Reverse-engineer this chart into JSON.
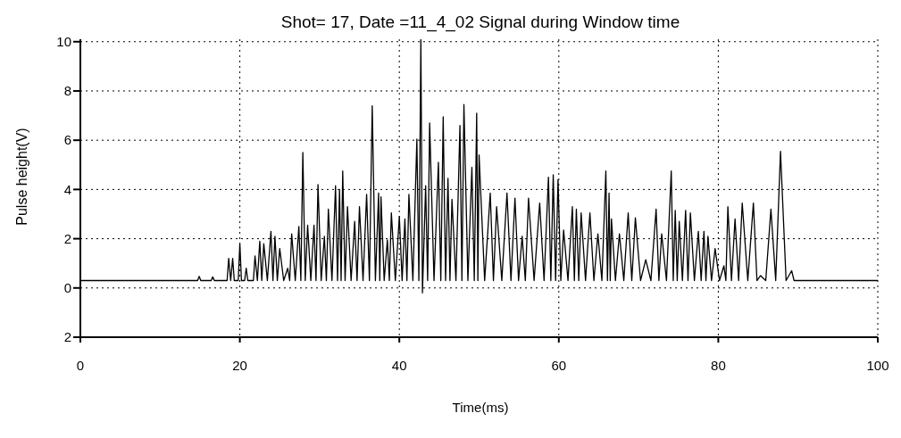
{
  "chart_data": {
    "type": "line",
    "title": "Shot= 17, Date =11_4_02 Signal during Window time",
    "xlabel": "Time(ms)",
    "ylabel": "Pulse height(V)",
    "xlim": [
      0,
      100
    ],
    "xticks": [
      0,
      20,
      40,
      60,
      80,
      100
    ],
    "ylim": [
      -2,
      10.1
    ],
    "yticks": [
      0,
      2,
      4,
      6,
      8,
      10,
      {
        "value": -2,
        "label": "2"
      }
    ],
    "grid": true,
    "legend": false,
    "marker": "none",
    "line_style": "solid",
    "x": [
      0,
      14.7,
      14.9,
      15.1,
      16.4,
      16.6,
      16.8,
      18.4,
      18.6,
      18.85,
      19.1,
      19.3,
      19.8,
      20.0,
      20.2,
      20.6,
      20.8,
      21.0,
      21.7,
      21.9,
      22.2,
      22.5,
      22.75,
      23.0,
      23.45,
      23.9,
      24.15,
      24.4,
      24.7,
      25.0,
      25.5,
      26.0,
      26.25,
      26.5,
      26.95,
      27.4,
      27.65,
      27.9,
      28.2,
      28.5,
      28.9,
      29.3,
      29.55,
      29.8,
      30.2,
      30.6,
      30.85,
      31.1,
      31.55,
      32.0,
      32.25,
      32.5,
      32.7,
      32.9,
      33.2,
      33.5,
      33.95,
      34.4,
      34.7,
      35.0,
      35.45,
      35.9,
      36.25,
      36.6,
      37.0,
      37.4,
      37.55,
      37.7,
      38.1,
      38.5,
      38.75,
      39.0,
      39.5,
      40.0,
      40.35,
      40.7,
      40.95,
      41.2,
      41.7,
      42.2,
      42.45,
      42.7,
      42.9,
      43.3,
      43.55,
      43.8,
      44.35,
      44.9,
      45.2,
      45.5,
      45.8,
      46.1,
      46.35,
      46.6,
      47.1,
      47.6,
      47.85,
      48.1,
      48.6,
      49.1,
      49.4,
      49.7,
      49.85,
      50.0,
      50.7,
      51.4,
      51.8,
      52.2,
      52.85,
      53.5,
      54.0,
      54.5,
      54.95,
      55.4,
      55.8,
      56.2,
      56.9,
      57.6,
      58.15,
      58.7,
      59.0,
      59.3,
      59.6,
      59.9,
      60.25,
      60.6,
      61.15,
      61.7,
      61.95,
      62.2,
      62.5,
      62.8,
      63.35,
      63.9,
      64.4,
      64.9,
      65.4,
      65.9,
      66.1,
      66.3,
      66.45,
      66.6,
      67.1,
      67.6,
      68.15,
      68.7,
      69.15,
      69.6,
      70.25,
      70.9,
      71.55,
      72.2,
      72.55,
      72.9,
      73.5,
      74.1,
      74.35,
      74.6,
      74.85,
      75.1,
      75.5,
      75.9,
      76.2,
      76.5,
      77.0,
      77.5,
      77.85,
      78.2,
      78.45,
      78.7,
      79.15,
      79.6,
      80.15,
      80.7,
      80.95,
      81.2,
      81.65,
      82.1,
      82.55,
      83.0,
      83.7,
      84.4,
      84.85,
      85.3,
      85.95,
      86.6,
      87.2,
      87.8,
      88.5,
      89.2,
      89.5,
      100
    ],
    "series": [
      {
        "color": "#000000",
        "values": [
          0.3,
          0.3,
          0.47,
          0.3,
          0.3,
          0.45,
          0.3,
          0.3,
          1.2,
          0.3,
          1.2,
          0.3,
          0.3,
          1.8,
          0.3,
          0.3,
          0.8,
          0.3,
          0.3,
          1.3,
          0.3,
          1.9,
          0.3,
          1.8,
          0.3,
          2.3,
          0.3,
          2.1,
          0.3,
          1.6,
          0.3,
          0.8,
          0.3,
          2.2,
          0.3,
          2.5,
          0.3,
          5.5,
          0.3,
          2.55,
          0.3,
          2.55,
          0.3,
          4.2,
          0.3,
          2.1,
          0.3,
          3.2,
          0.3,
          4.15,
          0.3,
          4.0,
          0.3,
          4.75,
          0.3,
          3.3,
          0.3,
          2.7,
          0.3,
          3.3,
          0.3,
          3.8,
          0.3,
          7.4,
          0.3,
          3.85,
          0.3,
          3.7,
          0.3,
          1.95,
          0.3,
          3.05,
          0.3,
          2.9,
          0.3,
          2.8,
          0.3,
          3.8,
          0.3,
          6.05,
          0.3,
          10.1,
          -0.2,
          4.15,
          0.3,
          6.7,
          0.3,
          5.1,
          0.3,
          6.95,
          0.3,
          4.45,
          0.3,
          3.6,
          0.3,
          6.6,
          0.3,
          7.45,
          0.3,
          4.9,
          0.3,
          7.1,
          0.3,
          5.4,
          0.3,
          3.85,
          0.3,
          3.3,
          0.3,
          3.85,
          0.3,
          3.65,
          0.3,
          2.1,
          0.3,
          3.65,
          0.3,
          3.45,
          0.3,
          4.5,
          0.3,
          4.6,
          0.3,
          4.4,
          0.3,
          2.35,
          0.3,
          3.3,
          0.3,
          3.2,
          0.3,
          3.05,
          0.3,
          3.05,
          0.3,
          2.2,
          0.3,
          4.75,
          0.3,
          3.85,
          0.3,
          2.8,
          0.3,
          2.2,
          0.3,
          3.05,
          0.3,
          2.85,
          0.3,
          1.15,
          0.3,
          3.2,
          0.3,
          2.2,
          0.3,
          4.75,
          0.3,
          3.15,
          0.3,
          2.7,
          0.3,
          3.15,
          0.3,
          3.05,
          0.3,
          2.3,
          0.3,
          2.3,
          0.3,
          2.1,
          0.3,
          1.6,
          0.3,
          0.9,
          0.3,
          3.3,
          0.3,
          2.8,
          0.3,
          3.45,
          0.3,
          3.45,
          0.3,
          0.5,
          0.3,
          3.2,
          0.3,
          5.55,
          0.3,
          0.7,
          0.3,
          0.3
        ]
      }
    ]
  }
}
